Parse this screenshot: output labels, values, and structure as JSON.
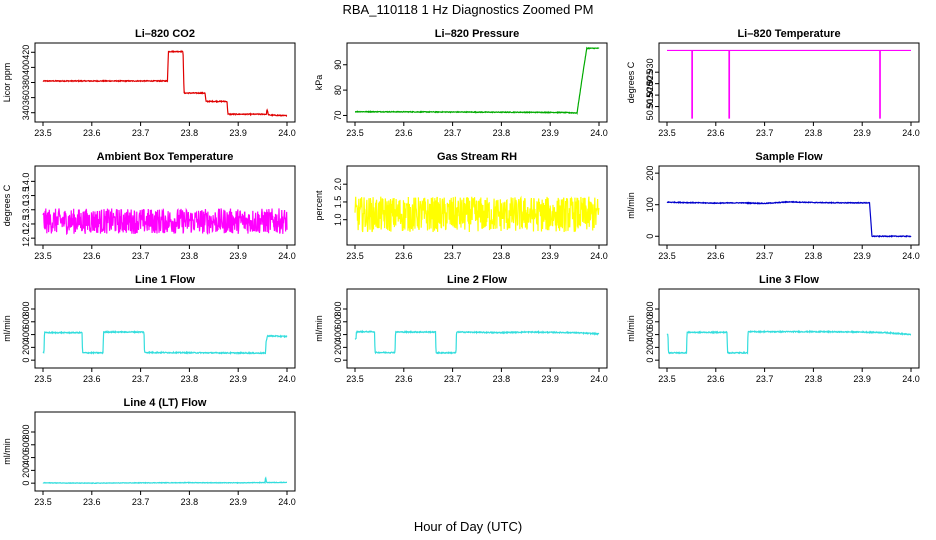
{
  "page": {
    "title": "RBA_110118  1 Hz Diagnostics Zoomed PM",
    "xlabel": "Hour of Day (UTC)"
  },
  "chart_data": [
    {
      "type": "line",
      "title": "Li–820 CO2",
      "ylabel": "Licor ppm",
      "xlim": [
        23.5,
        24.0
      ],
      "ylim": [
        333,
        427
      ],
      "xticks": [
        "23.5",
        "23.6",
        "23.7",
        "23.8",
        "23.9",
        "24.0"
      ],
      "yticks": [
        "340",
        "360",
        "380",
        "400",
        "420"
      ],
      "color": "#e00000",
      "noise": 0.6,
      "series": [
        {
          "x": [
            23.5,
            23.755,
            23.757,
            23.787,
            23.789,
            23.832,
            23.834,
            23.877,
            23.879,
            23.958,
            23.959,
            23.962,
            24.0
          ],
          "y": [
            382,
            382,
            421,
            421,
            366,
            366,
            355,
            355,
            338,
            338,
            345,
            337,
            336
          ]
        }
      ]
    },
    {
      "type": "line",
      "title": "Li–820 Pressure",
      "ylabel": "kPa",
      "xlim": [
        23.5,
        24.0
      ],
      "ylim": [
        69,
        97
      ],
      "xticks": [
        "23.5",
        "23.6",
        "23.7",
        "23.8",
        "23.9",
        "24.0"
      ],
      "yticks": [
        "70",
        "80",
        "90"
      ],
      "color": "#00aa00",
      "noise": 0.15,
      "series": [
        {
          "x": [
            23.5,
            23.92,
            23.955,
            23.968,
            23.975,
            24.0
          ],
          "y": [
            71.5,
            71.2,
            71.0,
            88,
            96.5,
            96.5
          ]
        }
      ]
    },
    {
      "type": "line",
      "title": "Li–820 Temperature",
      "ylabel": "degrees C",
      "xlim": [
        23.5,
        24.0
      ],
      "ylim": [
        50.91,
        50.941
      ],
      "xticks": [
        "23.5",
        "23.6",
        "23.7",
        "23.8",
        "23.9",
        "24.0"
      ],
      "yticks": [
        "50.915",
        "50.920",
        "50.925",
        "50.930"
      ],
      "color": "#ff00ff",
      "noise": 0,
      "series": [
        {
          "x": [
            23.5,
            23.551,
            23.551,
            23.552,
            23.552,
            23.627,
            23.627,
            23.628,
            23.628,
            23.936,
            23.936,
            23.937,
            23.937,
            24.0
          ],
          "y": [
            50.9395,
            50.9395,
            50.91,
            50.91,
            50.9395,
            50.9395,
            50.91,
            50.91,
            50.9395,
            50.9395,
            50.91,
            50.91,
            50.9395,
            50.9395
          ]
        }
      ]
    },
    {
      "type": "line",
      "title": "Ambient Box Temperature",
      "ylabel": "degrees C",
      "xlim": [
        23.5,
        24.0
      ],
      "ylim": [
        11.9,
        14.4
      ],
      "xticks": [
        "23.5",
        "23.6",
        "23.7",
        "23.8",
        "23.9",
        "24.0"
      ],
      "yticks": [
        "12.0",
        "12.5",
        "13.0",
        "13.5",
        "14.0"
      ],
      "color": "#ff00ff",
      "noise": 0.45,
      "series": [
        {
          "x": [
            23.5,
            24.0
          ],
          "y": [
            12.6,
            12.6
          ]
        }
      ]
    },
    {
      "type": "line",
      "title": "Gas Stream RH",
      "ylabel": "percent",
      "xlim": [
        23.5,
        24.0
      ],
      "ylim": [
        0.4,
        2.4
      ],
      "xticks": [
        "23.5",
        "23.6",
        "23.7",
        "23.8",
        "23.9",
        "24.0"
      ],
      "yticks": [
        "1.0",
        "1.5",
        "2.0"
      ],
      "color": "#ffff00",
      "noise": 0.5,
      "series": [
        {
          "x": [
            23.5,
            24.0
          ],
          "y": [
            1.15,
            1.15
          ]
        }
      ]
    },
    {
      "type": "line",
      "title": "Sample Flow",
      "ylabel": "ml/min",
      "xlim": [
        23.5,
        24.0
      ],
      "ylim": [
        -15,
        210
      ],
      "xticks": [
        "23.5",
        "23.6",
        "23.7",
        "23.8",
        "23.9",
        "24.0"
      ],
      "yticks": [
        "0",
        "100",
        "200"
      ],
      "color": "#0000cc",
      "noise": 1.2,
      "series": [
        {
          "x": [
            23.5,
            23.6,
            23.65,
            23.7,
            23.75,
            23.8,
            23.85,
            23.915,
            23.92,
            24.0
          ],
          "y": [
            108,
            105,
            106,
            104,
            109,
            107,
            106,
            106,
            0,
            0
          ]
        }
      ]
    },
    {
      "type": "line",
      "title": "Line 1 Flow",
      "ylabel": "ml/min",
      "xlim": [
        23.5,
        24.0
      ],
      "ylim": [
        -60,
        1050
      ],
      "xticks": [
        "23.5",
        "23.6",
        "23.7",
        "23.8",
        "23.9",
        "24.0"
      ],
      "yticks": [
        "0",
        "200",
        "400",
        "600",
        "800"
      ],
      "color": "#33dddd",
      "noise": 8,
      "series": [
        {
          "x": [
            23.5,
            23.502,
            23.503,
            23.58,
            23.581,
            23.623,
            23.624,
            23.707,
            23.708,
            23.956,
            23.957,
            23.96,
            24.0
          ],
          "y": [
            120,
            120,
            430,
            430,
            115,
            115,
            440,
            440,
            120,
            110,
            280,
            380,
            370
          ]
        }
      ]
    },
    {
      "type": "line",
      "title": "Line 2 Flow",
      "ylabel": "ml/min",
      "xlim": [
        23.5,
        24.0
      ],
      "ylim": [
        -60,
        1050
      ],
      "xticks": [
        "23.5",
        "23.6",
        "23.7",
        "23.8",
        "23.9",
        "24.0"
      ],
      "yticks": [
        "0",
        "200",
        "400",
        "600",
        "800"
      ],
      "color": "#33dddd",
      "noise": 8,
      "series": [
        {
          "x": [
            23.5,
            23.502,
            23.503,
            23.54,
            23.541,
            23.582,
            23.583,
            23.665,
            23.666,
            23.707,
            23.708,
            23.8,
            23.85,
            23.95,
            24.0
          ],
          "y": [
            330,
            330,
            445,
            445,
            120,
            120,
            440,
            440,
            115,
            115,
            440,
            430,
            440,
            430,
            410
          ]
        }
      ]
    },
    {
      "type": "line",
      "title": "Line 3 Flow",
      "ylabel": "ml/min",
      "xlim": [
        23.5,
        24.0
      ],
      "ylim": [
        -60,
        1050
      ],
      "xticks": [
        "23.5",
        "23.6",
        "23.7",
        "23.8",
        "23.9",
        "24.0"
      ],
      "yticks": [
        "0",
        "200",
        "400",
        "600",
        "800"
      ],
      "color": "#33dddd",
      "noise": 8,
      "series": [
        {
          "x": [
            23.5,
            23.502,
            23.503,
            23.54,
            23.541,
            23.623,
            23.624,
            23.665,
            23.666,
            23.8,
            23.9,
            23.95,
            24.0
          ],
          "y": [
            400,
            400,
            115,
            115,
            435,
            435,
            115,
            115,
            445,
            445,
            440,
            430,
            400
          ]
        }
      ]
    },
    {
      "type": "line",
      "title": "Line 4 (LT) Flow",
      "ylabel": "ml/min",
      "xlim": [
        23.5,
        24.0
      ],
      "ylim": [
        -60,
        1050
      ],
      "xticks": [
        "23.5",
        "23.6",
        "23.7",
        "23.8",
        "23.9",
        "24.0"
      ],
      "yticks": [
        "0",
        "200",
        "400",
        "600",
        "800"
      ],
      "color": "#33dddd",
      "noise": 4,
      "series": [
        {
          "x": [
            23.5,
            23.6,
            23.7,
            23.8,
            23.9,
            23.955,
            23.956,
            23.958,
            23.96,
            24.0
          ],
          "y": [
            5,
            0,
            5,
            8,
            5,
            10,
            95,
            15,
            10,
            12
          ]
        }
      ]
    }
  ]
}
